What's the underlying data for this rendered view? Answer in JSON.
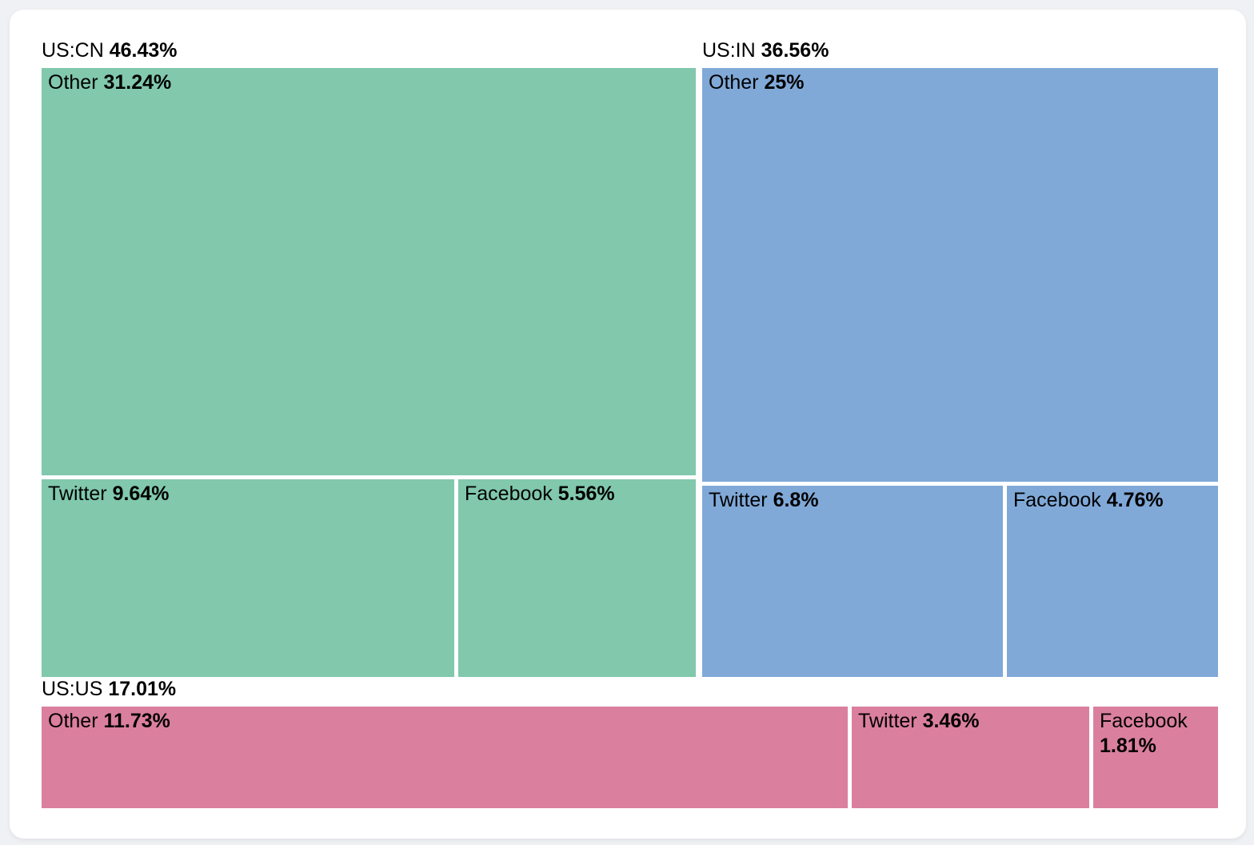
{
  "page": {
    "background_color": "#F0F1F4",
    "card_color": "#FFFFFF",
    "text_color": "#000000",
    "gap_color": "#FFFFFF"
  },
  "chart_data": {
    "type": "treemap",
    "title": "",
    "legend_position": "none",
    "grid": false,
    "groups": [
      {
        "label": "US:CN",
        "value": 46.43,
        "value_label": "46.43%",
        "color": "#81C8AD",
        "children": [
          {
            "label": "Other",
            "value": 31.24,
            "value_label": "31.24%"
          },
          {
            "label": "Twitter",
            "value": 9.64,
            "value_label": "9.64%"
          },
          {
            "label": "Facebook",
            "value": 5.56,
            "value_label": "5.56%"
          }
        ]
      },
      {
        "label": "US:IN",
        "value": 36.56,
        "value_label": "36.56%",
        "color": "#80A9D8",
        "children": [
          {
            "label": "Other",
            "value": 25,
            "value_label": "25%"
          },
          {
            "label": "Twitter",
            "value": 6.8,
            "value_label": "6.8%"
          },
          {
            "label": "Facebook",
            "value": 4.76,
            "value_label": "4.76%"
          }
        ]
      },
      {
        "label": "US:US",
        "value": 17.01,
        "value_label": "17.01%",
        "color": "#DB7F9F",
        "children": [
          {
            "label": "Other",
            "value": 11.73,
            "value_label": "11.73%"
          },
          {
            "label": "Twitter",
            "value": 3.46,
            "value_label": "3.46%"
          },
          {
            "label": "Facebook",
            "value": 1.81,
            "value_label": "1.81%"
          }
        ]
      }
    ],
    "layout": {
      "rows": [
        [
          "US:CN",
          "US:IN"
        ],
        [
          "US:US"
        ]
      ]
    }
  }
}
